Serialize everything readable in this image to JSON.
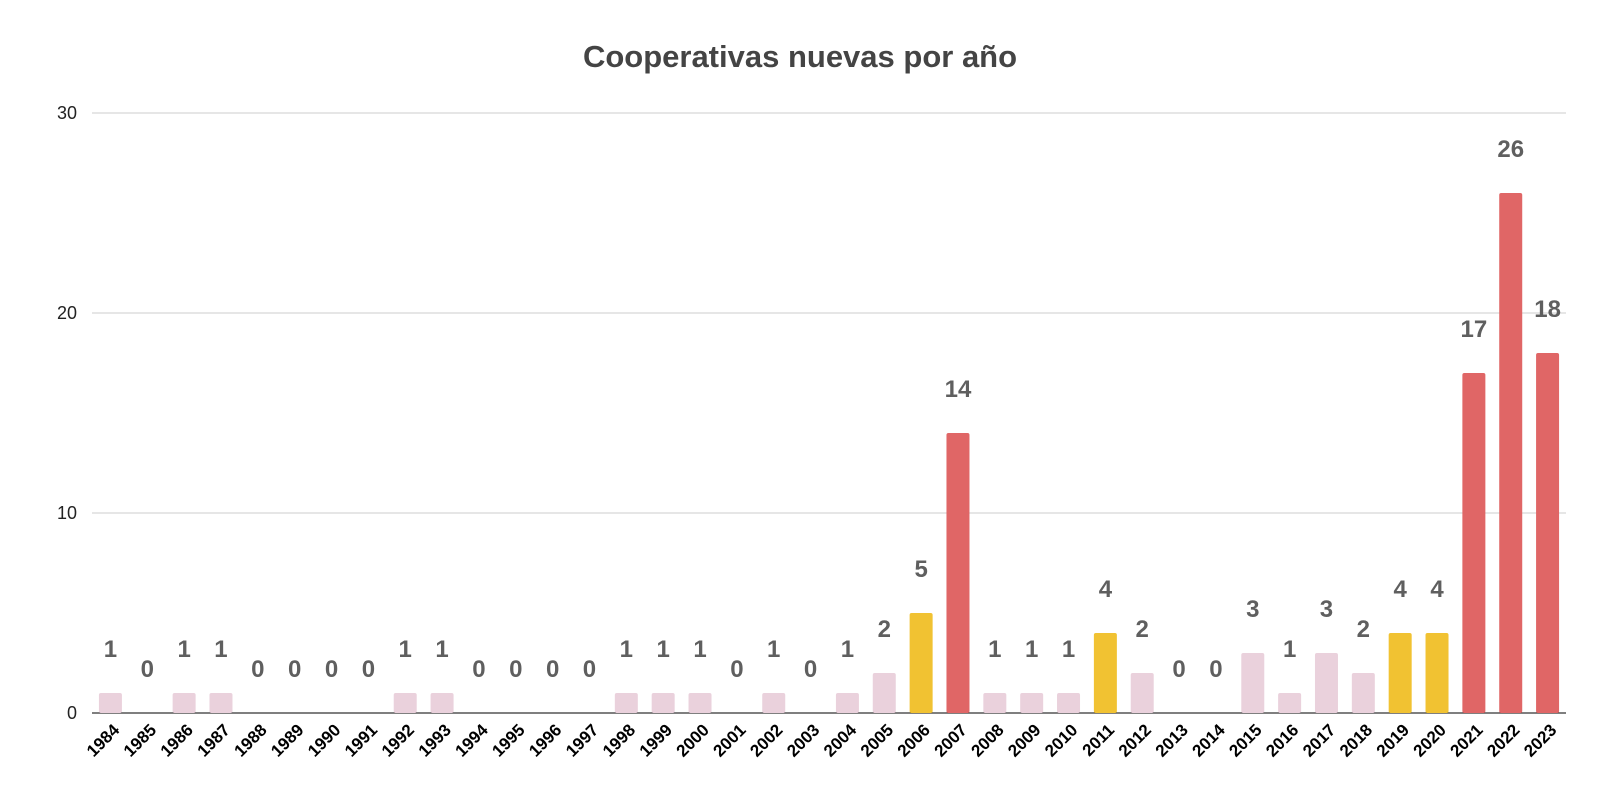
{
  "chart_data": {
    "type": "bar",
    "title": "Cooperativas nuevas por año",
    "xlabel": "",
    "ylabel": "",
    "ylim": [
      0,
      30
    ],
    "yticks": [
      0,
      10,
      20,
      30
    ],
    "grid": true,
    "legend": "none",
    "data_labels": true,
    "categories": [
      "1984",
      "1985",
      "1986",
      "1987",
      "1988",
      "1989",
      "1990",
      "1991",
      "1992",
      "1993",
      "1994",
      "1995",
      "1996",
      "1997",
      "1998",
      "1999",
      "2000",
      "2001",
      "2002",
      "2003",
      "2004",
      "2005",
      "2006",
      "2007",
      "2008",
      "2009",
      "2010",
      "2011",
      "2012",
      "2013",
      "2014",
      "2015",
      "2016",
      "2017",
      "2018",
      "2019",
      "2020",
      "2021",
      "2022",
      "2023"
    ],
    "values": [
      1,
      0,
      1,
      1,
      0,
      0,
      0,
      0,
      1,
      1,
      0,
      0,
      0,
      0,
      1,
      1,
      1,
      0,
      1,
      0,
      1,
      2,
      5,
      14,
      1,
      1,
      1,
      4,
      2,
      0,
      0,
      3,
      1,
      3,
      2,
      4,
      4,
      17,
      26,
      18
    ],
    "colors": {
      "low": "#ead1dc",
      "mid": "#f1c232",
      "high": "#e06666"
    },
    "bar_color_levels": [
      "low",
      "low",
      "low",
      "low",
      "low",
      "low",
      "low",
      "low",
      "low",
      "low",
      "low",
      "low",
      "low",
      "low",
      "low",
      "low",
      "low",
      "low",
      "low",
      "low",
      "low",
      "low",
      "mid",
      "high",
      "low",
      "low",
      "low",
      "mid",
      "low",
      "low",
      "low",
      "low",
      "low",
      "low",
      "low",
      "mid",
      "mid",
      "high",
      "high",
      "high"
    ]
  }
}
